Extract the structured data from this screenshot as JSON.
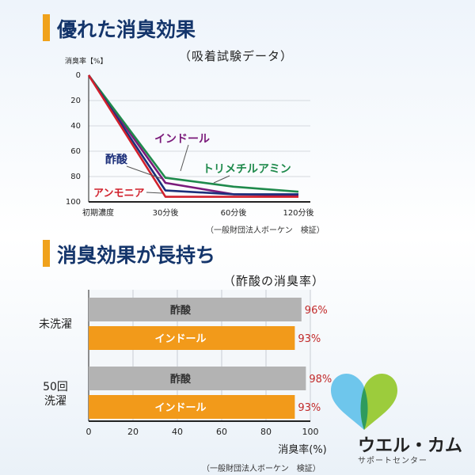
{
  "header1": {
    "title": "優れた消臭効果",
    "subtitle": "（吸着試験データ）"
  },
  "header2": {
    "title": "消臭効果が長持ち",
    "subtitle": "（酢酸の消臭率）"
  },
  "source_note": "（一般財団法人ボーケン　検証）",
  "chart_data": [
    {
      "type": "line",
      "ylabel": "消臭率【%】",
      "ylim": [
        0,
        100
      ],
      "y_inverted": true,
      "yticks": [
        0,
        20,
        40,
        60,
        80,
        100
      ],
      "categories": [
        "初期濃度",
        "30分後",
        "60分後",
        "120分後"
      ],
      "series": [
        {
          "name": "インドール",
          "values": [
            0,
            85,
            94,
            95
          ],
          "color": "#7a1a7a"
        },
        {
          "name": "トリメチルアミン",
          "values": [
            0,
            81,
            88,
            92
          ],
          "color": "#1f8a4c"
        },
        {
          "name": "酢酸",
          "values": [
            0,
            91,
            94,
            94
          ],
          "color": "#1c2f7a"
        },
        {
          "name": "アンモニア",
          "values": [
            0,
            96,
            96,
            96
          ],
          "color": "#d1202c"
        }
      ]
    },
    {
      "type": "bar",
      "orientation": "horizontal",
      "xlabel": "消臭率(%)",
      "xlim": [
        0,
        100
      ],
      "xticks": [
        0,
        20,
        40,
        60,
        80,
        100
      ],
      "groups": [
        {
          "label": "未洗濯",
          "bars": [
            {
              "name": "酢酸",
              "value": 96,
              "label": "96%",
              "color": "#b3b3b3"
            },
            {
              "name": "インドール",
              "value": 93,
              "label": "93%",
              "color": "#f29a1a"
            }
          ]
        },
        {
          "label": "50回\n洗濯",
          "bars": [
            {
              "name": "酢酸",
              "value": 98,
              "label": "98%",
              "color": "#b3b3b3"
            },
            {
              "name": "インドール",
              "value": 93,
              "label": "93%",
              "color": "#f29a1a"
            }
          ]
        }
      ]
    }
  ],
  "logo": {
    "name": "ウエル・カム",
    "tagline": "サポートセンター",
    "colors": [
      "#6ec6ec",
      "#9ccc3c",
      "#2f9b5d"
    ]
  }
}
